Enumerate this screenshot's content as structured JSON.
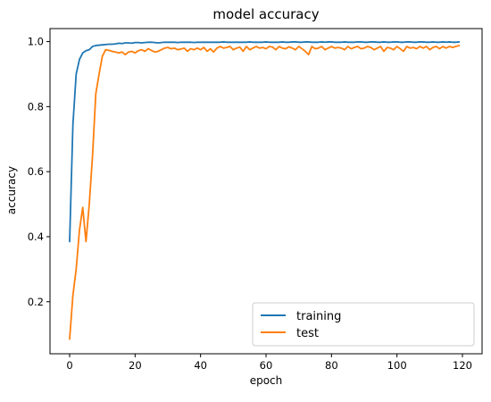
{
  "chart_data": {
    "type": "line",
    "title": "model accuracy",
    "xlabel": "epoch",
    "ylabel": "accuracy",
    "xlim": [
      -6,
      126
    ],
    "ylim": [
      0.04,
      1.04
    ],
    "xticks": [
      0,
      20,
      40,
      60,
      80,
      100,
      120
    ],
    "yticks": [
      0.2,
      0.4,
      0.6,
      0.8,
      1.0
    ],
    "ytick_labels": [
      "0.2",
      "0.4",
      "0.6",
      "0.8",
      "1.0"
    ],
    "grid": false,
    "legend_position": "lower-right",
    "x": [
      0,
      1,
      2,
      3,
      4,
      5,
      6,
      7,
      8,
      9,
      10,
      11,
      12,
      13,
      14,
      15,
      16,
      17,
      18,
      19,
      20,
      21,
      22,
      23,
      24,
      25,
      26,
      27,
      28,
      29,
      30,
      31,
      32,
      33,
      34,
      35,
      36,
      37,
      38,
      39,
      40,
      41,
      42,
      43,
      44,
      45,
      46,
      47,
      48,
      49,
      50,
      51,
      52,
      53,
      54,
      55,
      56,
      57,
      58,
      59,
      60,
      61,
      62,
      63,
      64,
      65,
      66,
      67,
      68,
      69,
      70,
      71,
      72,
      73,
      74,
      75,
      76,
      77,
      78,
      79,
      80,
      81,
      82,
      83,
      84,
      85,
      86,
      87,
      88,
      89,
      90,
      91,
      92,
      93,
      94,
      95,
      96,
      97,
      98,
      99,
      100,
      101,
      102,
      103,
      104,
      105,
      106,
      107,
      108,
      109,
      110,
      111,
      112,
      113,
      114,
      115,
      116,
      117,
      118,
      119
    ],
    "series": [
      {
        "name": "training",
        "color": "#1f77b4",
        "values": [
          0.385,
          0.745,
          0.9,
          0.945,
          0.965,
          0.972,
          0.975,
          0.985,
          0.988,
          0.989,
          0.99,
          0.991,
          0.992,
          0.992,
          0.993,
          0.995,
          0.994,
          0.996,
          0.996,
          0.995,
          0.997,
          0.997,
          0.996,
          0.997,
          0.998,
          0.998,
          0.997,
          0.996,
          0.997,
          0.998,
          0.998,
          0.998,
          0.998,
          0.997,
          0.998,
          0.998,
          0.998,
          0.998,
          0.997,
          0.998,
          0.998,
          0.998,
          0.998,
          0.998,
          0.998,
          0.998,
          0.998,
          0.999,
          0.998,
          0.998,
          0.998,
          0.998,
          0.998,
          0.998,
          0.998,
          0.999,
          0.998,
          0.998,
          0.998,
          0.998,
          0.999,
          0.998,
          0.998,
          0.998,
          0.998,
          0.999,
          0.998,
          0.998,
          0.999,
          0.999,
          0.998,
          0.998,
          0.999,
          0.999,
          0.998,
          0.998,
          0.998,
          0.999,
          0.998,
          0.999,
          0.999,
          0.998,
          0.998,
          0.998,
          0.999,
          0.998,
          0.998,
          0.998,
          0.999,
          0.999,
          0.998,
          0.998,
          0.999,
          0.999,
          0.998,
          0.998,
          0.999,
          0.998,
          0.998,
          0.999,
          0.999,
          0.998,
          0.998,
          0.999,
          0.999,
          0.998,
          0.998,
          0.999,
          0.999,
          0.998,
          0.998,
          0.999,
          0.998,
          0.998,
          0.999,
          0.998,
          0.999,
          0.998,
          0.998,
          0.999
        ]
      },
      {
        "name": "test",
        "color": "#ff7f0e",
        "values": [
          0.085,
          0.22,
          0.3,
          0.42,
          0.49,
          0.385,
          0.5,
          0.65,
          0.84,
          0.9,
          0.955,
          0.975,
          0.973,
          0.97,
          0.968,
          0.965,
          0.968,
          0.96,
          0.968,
          0.97,
          0.965,
          0.972,
          0.975,
          0.97,
          0.978,
          0.973,
          0.968,
          0.97,
          0.975,
          0.98,
          0.982,
          0.978,
          0.98,
          0.975,
          0.977,
          0.98,
          0.97,
          0.978,
          0.975,
          0.98,
          0.975,
          0.982,
          0.97,
          0.978,
          0.968,
          0.98,
          0.985,
          0.98,
          0.982,
          0.985,
          0.975,
          0.98,
          0.983,
          0.97,
          0.985,
          0.975,
          0.98,
          0.985,
          0.98,
          0.982,
          0.978,
          0.985,
          0.983,
          0.975,
          0.985,
          0.98,
          0.978,
          0.984,
          0.98,
          0.975,
          0.985,
          0.978,
          0.97,
          0.96,
          0.985,
          0.978,
          0.98,
          0.985,
          0.975,
          0.98,
          0.985,
          0.98,
          0.982,
          0.98,
          0.975,
          0.985,
          0.978,
          0.982,
          0.985,
          0.978,
          0.98,
          0.985,
          0.982,
          0.975,
          0.98,
          0.985,
          0.97,
          0.982,
          0.98,
          0.975,
          0.985,
          0.978,
          0.97,
          0.985,
          0.98,
          0.982,
          0.978,
          0.985,
          0.98,
          0.985,
          0.975,
          0.982,
          0.985,
          0.978,
          0.985,
          0.98,
          0.985,
          0.982,
          0.985,
          0.988
        ]
      }
    ]
  }
}
